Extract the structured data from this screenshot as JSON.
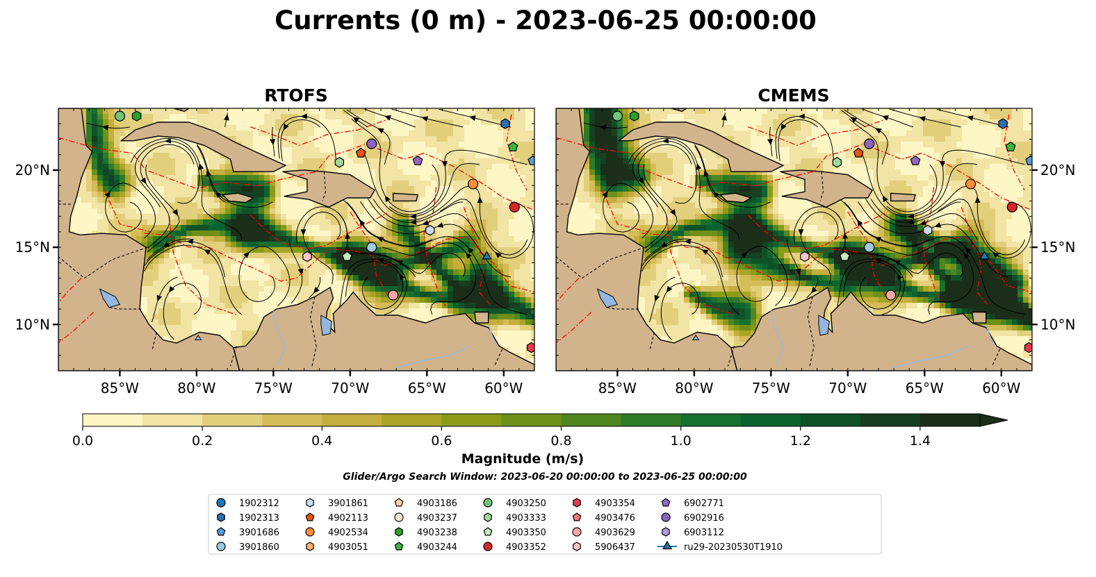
{
  "title": "Currents (0 m) - 2023-06-25 00:00:00",
  "panels": [
    {
      "title": "RTOFS"
    },
    {
      "title": "CMEMS"
    }
  ],
  "colors": {
    "land": "#d2b48c",
    "lake": "#94b6e0",
    "eez": "#ff0000",
    "water_low": "#fdf6c4",
    "water_mid": "#8aa61d",
    "water_high": "#0e5a2c"
  },
  "colorbar": {
    "label": "Magnitude (m/s)",
    "min": 0.0,
    "max": 1.5,
    "extend": "max",
    "ticks": [
      0.0,
      0.2,
      0.4,
      0.6,
      0.8,
      1.0,
      1.2,
      1.4
    ],
    "tick_labels": [
      "0.0",
      "0.2",
      "0.4",
      "0.6",
      "0.8",
      "1.0",
      "1.2",
      "1.4"
    ],
    "colors": [
      "#fef6c5",
      "#f1e4a4",
      "#e2cf7c",
      "#d4bc58",
      "#c4ae3e",
      "#a8a527",
      "#8a9c16",
      "#6e9019",
      "#4f861f",
      "#2f7a28",
      "#177030",
      "#0d632f",
      "#0f5228",
      "#173f22",
      "#1a2e19"
    ]
  },
  "subtitle": "Glider/Argo Search Window: 2023-06-20 00:00:00 to 2023-06-25 00:00:00",
  "chart_data": {
    "type": "scatter",
    "map_extent": {
      "lon": [
        -89,
        -58
      ],
      "lat": [
        7,
        24
      ]
    },
    "x_ticks": [
      -85,
      -80,
      -75,
      -70,
      -65,
      -60
    ],
    "x_tick_labels": [
      "85°W",
      "80°W",
      "75°W",
      "70°W",
      "65°W",
      "60°W"
    ],
    "y_ticks": [
      10,
      15,
      20
    ],
    "y_tick_labels": [
      "10°N",
      "15°N",
      "20°N"
    ],
    "legend_placement": "bottom-center",
    "series": [
      {
        "name": "1902312",
        "marker": "circle",
        "color": "#1f77b4",
        "lon": null,
        "lat": null
      },
      {
        "name": "1902313",
        "marker": "hexagon",
        "color": "#2f6fb0",
        "lon": -59.9,
        "lat": 23.0
      },
      {
        "name": "3901686",
        "marker": "pentagon",
        "color": "#5b9bd5",
        "lon": -58.1,
        "lat": 20.6
      },
      {
        "name": "3901860",
        "marker": "circle",
        "color": "#9ecae1",
        "lon": -68.6,
        "lat": 15.0
      },
      {
        "name": "3901861",
        "marker": "hexagon",
        "color": "#c6dbef",
        "lon": -64.8,
        "lat": 16.1
      },
      {
        "name": "4902113",
        "marker": "pentagon",
        "color": "#e6550d",
        "lon": -69.3,
        "lat": 21.1
      },
      {
        "name": "4902534",
        "marker": "circle",
        "color": "#fd8d3c",
        "lon": -62.0,
        "lat": 19.1
      },
      {
        "name": "4903051",
        "marker": "hexagon",
        "color": "#fdae6b",
        "lon": null,
        "lat": null
      },
      {
        "name": "4903186",
        "marker": "pentagon",
        "color": "#fdd0a2",
        "lon": null,
        "lat": null
      },
      {
        "name": "4903237",
        "marker": "circle",
        "color": "#fee6ce",
        "lon": null,
        "lat": null
      },
      {
        "name": "4903238",
        "marker": "hexagon",
        "color": "#2ca02c",
        "lon": -83.9,
        "lat": 23.5
      },
      {
        "name": "4903244",
        "marker": "pentagon",
        "color": "#3cb43c",
        "lon": -59.4,
        "lat": 21.5
      },
      {
        "name": "4903250",
        "marker": "circle",
        "color": "#74c476",
        "lon": -85.0,
        "lat": 23.5
      },
      {
        "name": "4903333",
        "marker": "hexagon",
        "color": "#a1d99b",
        "lon": -70.7,
        "lat": 20.5
      },
      {
        "name": "4903350",
        "marker": "pentagon",
        "color": "#c7e9c0",
        "lon": -70.2,
        "lat": 14.4
      },
      {
        "name": "4903352",
        "marker": "circle",
        "color": "#d62728",
        "lon": -59.3,
        "lat": 17.6
      },
      {
        "name": "4903354",
        "marker": "hexagon",
        "color": "#e6394a",
        "lon": -58.2,
        "lat": 8.5
      },
      {
        "name": "4903476",
        "marker": "pentagon",
        "color": "#f07777",
        "lon": null,
        "lat": null
      },
      {
        "name": "4903629",
        "marker": "circle",
        "color": "#f4a6a6",
        "lon": -67.2,
        "lat": 11.9
      },
      {
        "name": "5906437",
        "marker": "hexagon",
        "color": "#fbc6c6",
        "lon": -72.8,
        "lat": 14.4
      },
      {
        "name": "6902771",
        "marker": "pentagon",
        "color": "#9467bd",
        "lon": -65.6,
        "lat": 20.6
      },
      {
        "name": "6902916",
        "marker": "circle",
        "color": "#8e63c2",
        "lon": -68.6,
        "lat": 21.7
      },
      {
        "name": "6903112",
        "marker": "hexagon",
        "color": "#b799d9",
        "lon": null,
        "lat": null
      },
      {
        "name": "ru29-20230530T1910",
        "marker": "triangle",
        "color": "#1f77b4",
        "lon": -61.1,
        "lat": 14.4
      }
    ]
  }
}
